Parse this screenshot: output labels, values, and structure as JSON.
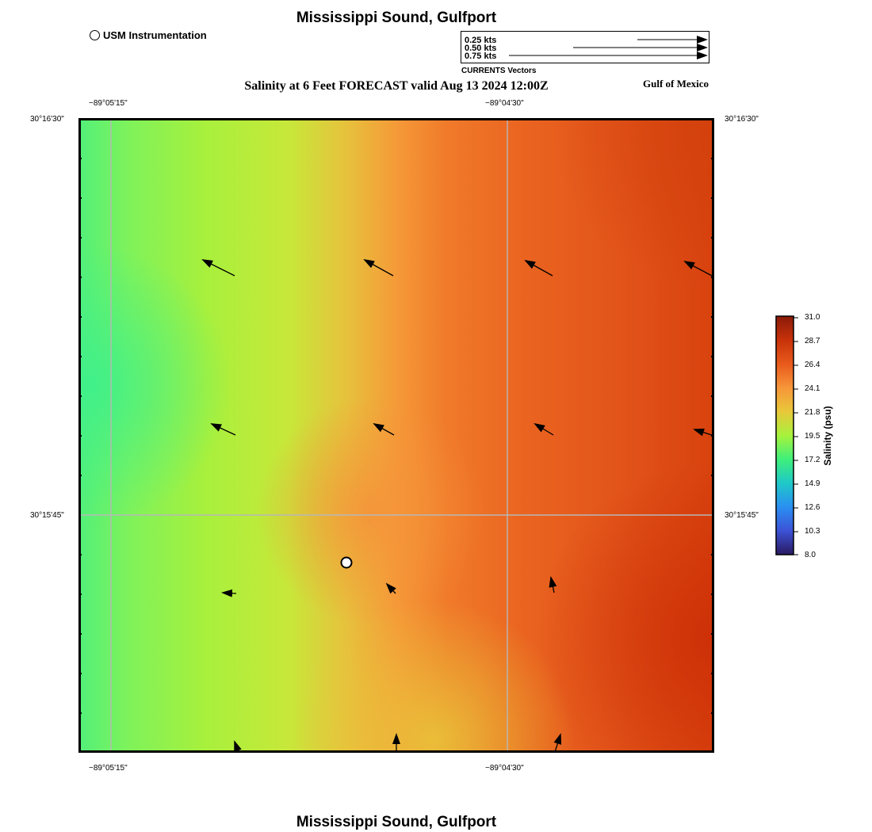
{
  "header": {
    "title": "Mississippi Sound, Gulfport",
    "subtitle": "Salinity at 6 Feet FORECAST valid Aug 13 2024 12:00Z",
    "region": "Gulf of Mexico",
    "site_legend": "USM Instrumentation"
  },
  "vector_legend": {
    "labels": [
      "0.25 kts",
      "0.50 kts",
      "0.75 kts"
    ],
    "caption": "CURRENTS Vectors"
  },
  "map": {
    "lon_ticks": [
      "−89°05'15\"",
      "−89°04'30\""
    ],
    "lat_ticks": [
      "30°16'30\"",
      "30°15'45\""
    ]
  },
  "colorbar": {
    "title": "Salinity (psu)",
    "ticks": [
      "31.0",
      "28.7",
      "26.4",
      "24.1",
      "21.8",
      "19.5",
      "17.2",
      "14.9",
      "12.6",
      "10.3",
      "8.0"
    ],
    "colors": [
      "#2a1960",
      "#3c52d6",
      "#2a8ff2",
      "#1fc8c8",
      "#3ef07a",
      "#a7f23c",
      "#e8c83a",
      "#f7963a",
      "#e85a1c",
      "#c8320a",
      "#8a1a0a"
    ]
  },
  "footer": {
    "title": "Mississippi Sound, Gulfport"
  }
}
